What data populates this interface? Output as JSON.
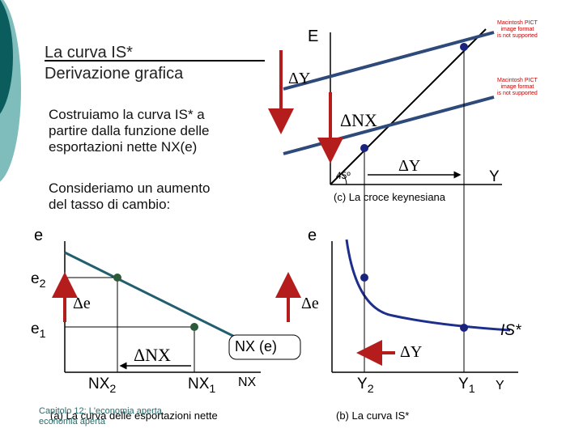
{
  "colors": {
    "teal_dark": "#0b5c5c",
    "teal_light": "#7fbcbc",
    "line_blue": "#2e4a7a",
    "point_blue": "#1a237e",
    "arrow_red": "#b51c1c",
    "curve_blue": "#1d2f8c",
    "line_teal": "#215f6f",
    "point_green": "#2d5a3a"
  },
  "title": {
    "line1": "La curva IS*",
    "line2": "Derivazione grafica"
  },
  "body": {
    "para1_l1": "Costruiamo la curva IS* a",
    "para1_l2": "partire dalla funzione delle",
    "para1_l3": "esportazioni nette NX(e)",
    "para2_l1": "Consideriamo un aumento",
    "para2_l2": "del tasso di cambio:"
  },
  "panel_c": {
    "y_axis_label": "E",
    "x_axis_label": "Y",
    "delta_y_left": "ΔY",
    "delta_nx": "ΔNX",
    "delta_y_bottom": "ΔY",
    "angle": "45º",
    "caption": "(c) La croce keynesiana",
    "pict_placeholder_1": [
      "Macintosh PICT",
      "image format",
      "is not supported"
    ],
    "pict_placeholder_2": [
      "Macintosh PICT",
      "image format",
      "is not supported"
    ]
  },
  "panel_a": {
    "y_axis_label": "e",
    "e2": "e2",
    "e1": "e1",
    "delta_e": "Δe",
    "delta_nx": "ΔNX",
    "nx2": "NX2",
    "nx1": "NX1",
    "x_axis_label": "NX",
    "curve_label": "NX (e)",
    "caption": "(a) La curva delle esportazioni nette"
  },
  "panel_b": {
    "y_axis_label": "e",
    "delta_e": "Δe",
    "delta_y": "ΔY",
    "curve_label": "IS*",
    "y2": "Y2",
    "y1": "Y1",
    "x_axis_label": "Y",
    "caption": "(b) La curva IS*"
  },
  "footer": {
    "line1": "Capitolo 12: L'economia aperta",
    "line2": "economia aperta"
  }
}
